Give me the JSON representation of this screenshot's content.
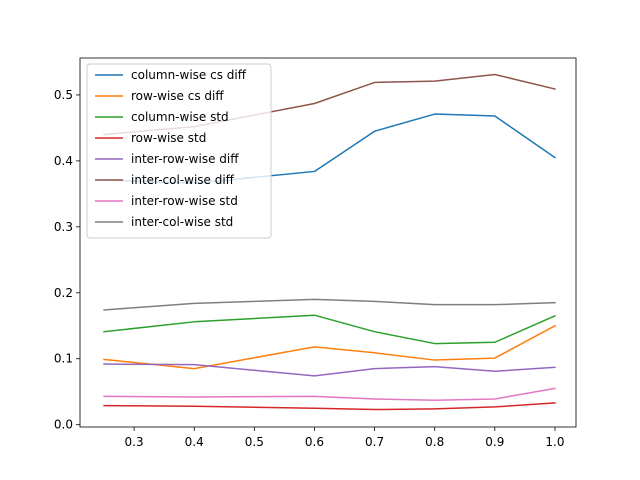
{
  "chart_data": {
    "type": "line",
    "title": "",
    "xlabel": "",
    "ylabel": "",
    "x": [
      0.25,
      0.4,
      0.6,
      0.7,
      0.8,
      0.9,
      1.0
    ],
    "xlim": [
      0.21,
      1.035
    ],
    "ylim": [
      -0.0035,
      0.556
    ],
    "xticks": [
      0.3,
      0.4,
      0.5,
      0.6,
      0.7,
      0.8,
      0.9,
      1.0
    ],
    "yticks": [
      0.0,
      0.1,
      0.2,
      0.3,
      0.4,
      0.5
    ],
    "grid": false,
    "legend_position": "upper-left",
    "series": [
      {
        "name": "column-wise cs diff",
        "color": "#1f77b4",
        "values": [
          0.371,
          0.366,
          0.384,
          0.445,
          0.471,
          0.468,
          0.405
        ]
      },
      {
        "name": "row-wise cs diff",
        "color": "#ff7f0e",
        "values": [
          0.099,
          0.085,
          0.118,
          0.109,
          0.098,
          0.101,
          0.15
        ]
      },
      {
        "name": "column-wise std",
        "color": "#2ca02c",
        "values": [
          0.141,
          0.156,
          0.166,
          0.141,
          0.123,
          0.125,
          0.165
        ]
      },
      {
        "name": "row-wise std",
        "color": "#d62728",
        "values": [
          0.029,
          0.028,
          0.025,
          0.023,
          0.024,
          0.027,
          0.033
        ]
      },
      {
        "name": "inter-row-wise diff",
        "color": "#9467bd",
        "values": [
          0.092,
          0.091,
          0.074,
          0.085,
          0.088,
          0.081,
          0.087
        ]
      },
      {
        "name": "inter-col-wise diff",
        "color": "#8c564b",
        "values": [
          0.44,
          0.452,
          0.487,
          0.519,
          0.521,
          0.531,
          0.509
        ]
      },
      {
        "name": "inter-row-wise std",
        "color": "#e377c2",
        "values": [
          0.043,
          0.042,
          0.043,
          0.039,
          0.037,
          0.039,
          0.055
        ]
      },
      {
        "name": "inter-col-wise std",
        "color": "#7f7f7f",
        "values": [
          0.174,
          0.184,
          0.19,
          0.187,
          0.182,
          0.182,
          0.185
        ]
      }
    ]
  }
}
